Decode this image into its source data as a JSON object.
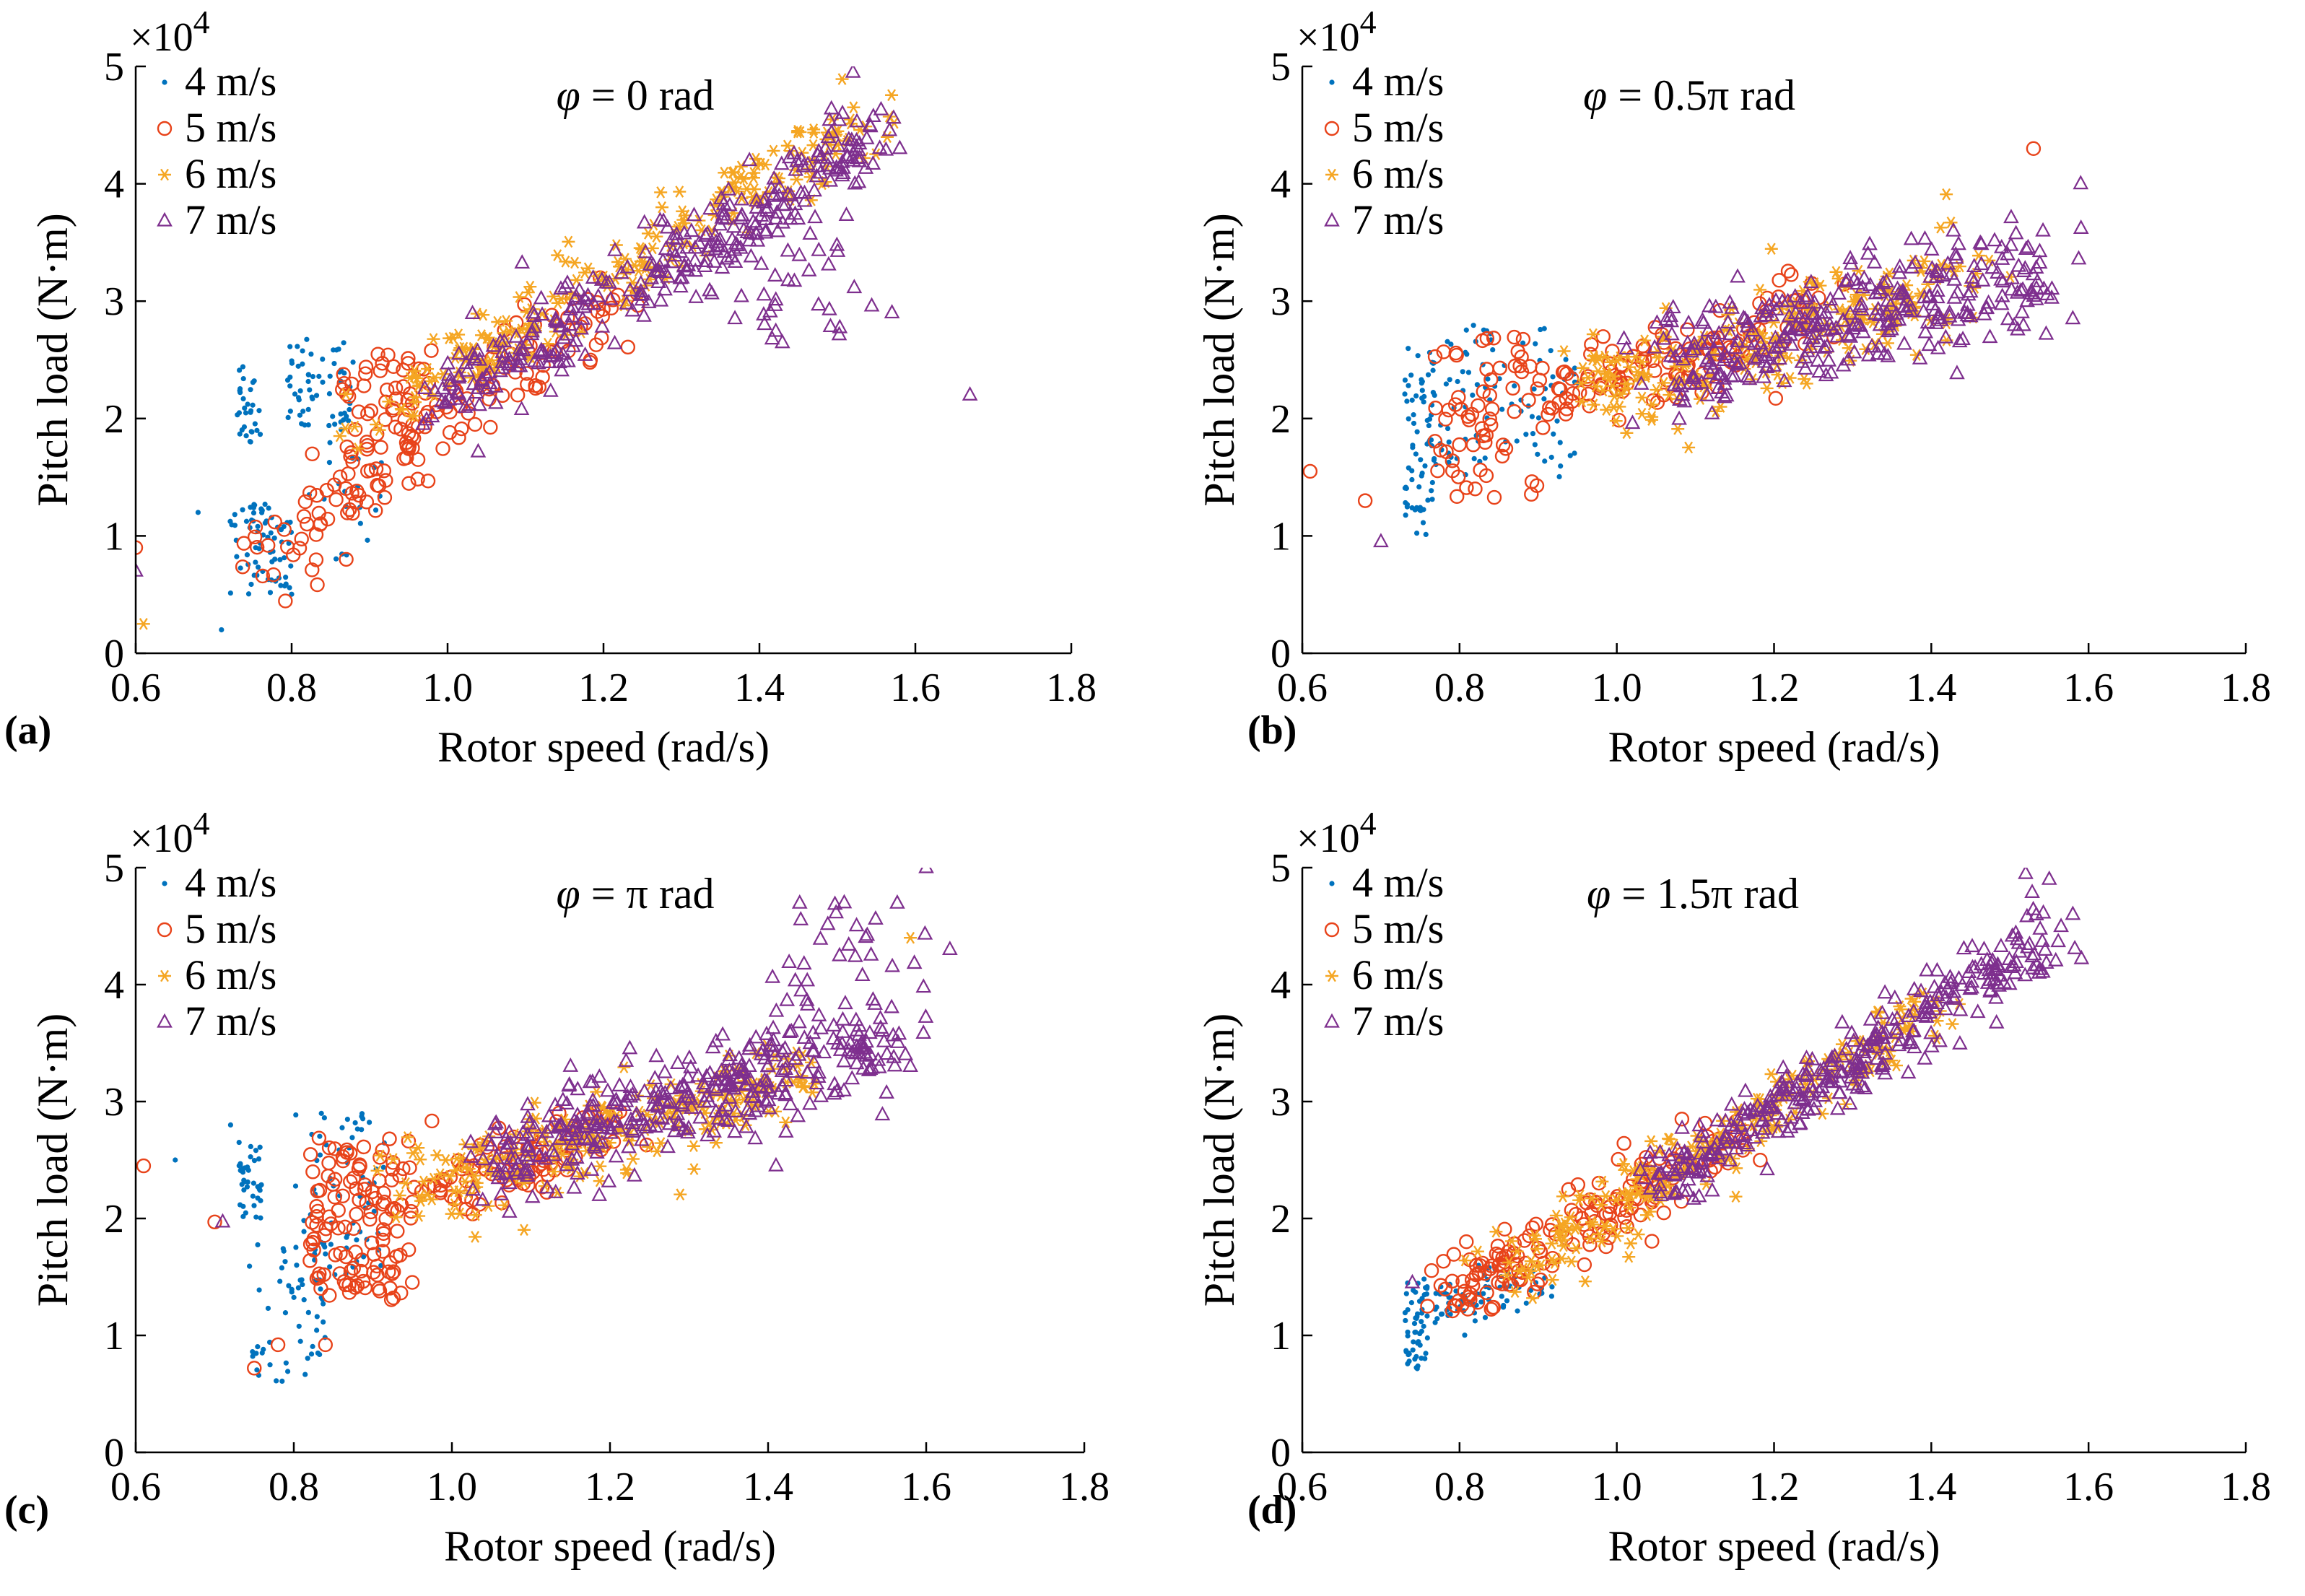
{
  "figure": {
    "colors": {
      "4 m/s": "#0072BD",
      "5 m/s": "#E8431A",
      "6 m/s": "#F5A623",
      "7 m/s": "#7E2F8E"
    }
  },
  "chart_data": [
    {
      "type": "scatter",
      "panel": "(a)",
      "annotation": "φ = 0 rad",
      "xlabel": "Rotor speed (rad/s)",
      "ylabel": "Pitch load (N·m)",
      "y_multiplier": "×10^4",
      "xlim": [
        0.6,
        1.8
      ],
      "ylim": [
        0,
        5
      ],
      "xticks": [
        "0.6",
        "0.8",
        "1.0",
        "1.2",
        "1.4",
        "1.6",
        "1.8"
      ],
      "yticks": [
        "0",
        "1",
        "2",
        "3",
        "4",
        "5"
      ],
      "legend": [
        "4 m/s",
        "5 m/s",
        "6 m/s",
        "7 m/s"
      ],
      "legend_position": "top-left",
      "series": [
        {
          "name": "4 m/s",
          "marker": "dot",
          "clusters": [
            {
              "x0": 0.72,
              "x1": 0.8,
              "y0": 0.5,
              "y1": 1.3,
              "n": 70
            },
            {
              "x0": 0.73,
              "x1": 0.76,
              "y0": 1.8,
              "y1": 2.5,
              "n": 30
            },
            {
              "x0": 0.78,
              "x1": 0.88,
              "y0": 1.9,
              "y1": 2.7,
              "n": 60
            },
            {
              "x0": 0.82,
              "x1": 0.92,
              "y0": 0.8,
              "y1": 1.8,
              "n": 20
            }
          ],
          "points": [
            [
              0.68,
              1.2
            ],
            [
              0.71,
              0.2
            ]
          ]
        },
        {
          "name": "5 m/s",
          "marker": "circle",
          "clusters": [
            {
              "line": [
                0.75,
                0.8,
                1.2,
                2.95
              ],
              "spread_x": 0.06,
              "spread_y": 0.25,
              "n": 150
            },
            {
              "x0": 0.86,
              "x1": 0.98,
              "y0": 1.9,
              "y1": 2.6,
              "n": 40
            }
          ],
          "points": [
            [
              0.6,
              0.9
            ],
            [
              0.87,
              0.8
            ]
          ]
        },
        {
          "name": "6 m/s",
          "marker": "asterisk",
          "clusters": [
            {
              "line": [
                0.88,
                1.9,
                1.55,
                4.6
              ],
              "spread_x": 0.05,
              "spread_y": 0.25,
              "n": 240
            }
          ],
          "points": [
            [
              0.61,
              0.25
            ]
          ]
        },
        {
          "name": "7 m/s",
          "marker": "triangle",
          "clusters": [
            {
              "line": [
                1.0,
                2.2,
                1.56,
                4.4
              ],
              "spread_x": 0.05,
              "spread_y": 0.28,
              "n": 330
            },
            {
              "x0": 1.35,
              "x1": 1.55,
              "y0": 2.6,
              "y1": 3.5,
              "n": 30
            }
          ],
          "points": [
            [
              1.67,
              2.2
            ],
            [
              0.6,
              0.7
            ],
            [
              1.52,
              4.95
            ],
            [
              1.58,
              4.3
            ],
            [
              1.57,
              2.9
            ]
          ]
        }
      ]
    },
    {
      "type": "scatter",
      "panel": "(b)",
      "annotation": "φ = 0.5π rad",
      "xlabel": "Rotor speed (rad/s)",
      "ylabel": "Pitch load (N·m)",
      "y_multiplier": "×10^4",
      "xlim": [
        0.6,
        1.8
      ],
      "ylim": [
        0,
        5
      ],
      "xticks": [
        "0.6",
        "0.8",
        "1.0",
        "1.2",
        "1.4",
        "1.6",
        "1.8"
      ],
      "yticks": [
        "0",
        "1",
        "2",
        "3",
        "4",
        "5"
      ],
      "legend": [
        "4 m/s",
        "5 m/s",
        "6 m/s",
        "7 m/s"
      ],
      "legend_position": "top-left",
      "series": [
        {
          "name": "4 m/s",
          "marker": "dot",
          "clusters": [
            {
              "x0": 0.73,
              "x1": 0.77,
              "y0": 1.0,
              "y1": 2.6,
              "n": 70
            },
            {
              "x0": 0.76,
              "x1": 0.95,
              "y0": 1.5,
              "y1": 2.8,
              "n": 90
            }
          ],
          "points": []
        },
        {
          "name": "5 m/s",
          "marker": "circle",
          "clusters": [
            {
              "x0": 0.76,
              "x1": 0.9,
              "y0": 1.3,
              "y1": 2.7,
              "n": 60
            },
            {
              "line": [
                0.9,
                2.1,
                1.25,
                2.9
              ],
              "spread_x": 0.06,
              "spread_y": 0.3,
              "n": 130
            }
          ],
          "points": [
            [
              0.61,
              1.55
            ],
            [
              0.68,
              1.3
            ],
            [
              1.53,
              4.3
            ]
          ]
        },
        {
          "name": "6 m/s",
          "marker": "asterisk",
          "clusters": [
            {
              "line": [
                0.95,
                2.2,
                1.45,
                3.2
              ],
              "spread_x": 0.06,
              "spread_y": 0.35,
              "n": 240
            }
          ],
          "points": []
        },
        {
          "name": "7 m/s",
          "marker": "triangle",
          "clusters": [
            {
              "line": [
                1.05,
                2.4,
                1.55,
                3.3
              ],
              "spread_x": 0.05,
              "spread_y": 0.38,
              "n": 340
            }
          ],
          "points": [
            [
              0.7,
              0.95
            ],
            [
              1.59,
              4.0
            ],
            [
              1.58,
              2.85
            ]
          ]
        }
      ]
    },
    {
      "type": "scatter",
      "panel": "(c)",
      "annotation": "φ = π rad",
      "xlabel": "Rotor speed (rad/s)",
      "ylabel": "Pitch load (N·m)",
      "y_multiplier": "×10^4",
      "xlim": [
        0.6,
        1.8
      ],
      "ylim": [
        0,
        5
      ],
      "xticks": [
        "0.6",
        "0.8",
        "1.0",
        "1.2",
        "1.4",
        "1.6",
        "1.8"
      ],
      "yticks": [
        "0",
        "1",
        "2",
        "3",
        "4",
        "5"
      ],
      "legend": [
        "4 m/s",
        "5 m/s",
        "6 m/s",
        "7 m/s"
      ],
      "legend_position": "top-left",
      "series": [
        {
          "name": "4 m/s",
          "marker": "dot",
          "clusters": [
            {
              "x0": 0.73,
              "x1": 0.76,
              "y0": 2.0,
              "y1": 2.7,
              "n": 40
            },
            {
              "x0": 0.74,
              "x1": 0.84,
              "y0": 0.6,
              "y1": 1.8,
              "n": 60
            },
            {
              "x0": 0.8,
              "x1": 0.92,
              "y0": 1.5,
              "y1": 2.9,
              "n": 60
            }
          ],
          "points": [
            [
              0.65,
              2.5
            ],
            [
              0.72,
              2.8
            ]
          ]
        },
        {
          "name": "5 m/s",
          "marker": "circle",
          "clusters": [
            {
              "x0": 0.82,
              "x1": 0.95,
              "y0": 1.3,
              "y1": 2.7,
              "n": 120
            },
            {
              "line": [
                0.95,
                2.2,
                1.2,
                2.8
              ],
              "spread_x": 0.05,
              "spread_y": 0.25,
              "n": 100
            }
          ],
          "points": [
            [
              0.61,
              2.45
            ],
            [
              0.7,
              1.97
            ],
            [
              0.75,
              0.72
            ],
            [
              0.78,
              0.92
            ],
            [
              0.84,
              0.92
            ]
          ]
        },
        {
          "name": "6 m/s",
          "marker": "asterisk",
          "clusters": [
            {
              "line": [
                0.92,
                2.2,
                1.45,
                3.2
              ],
              "spread_x": 0.06,
              "spread_y": 0.3,
              "n": 240
            }
          ],
          "points": [
            [
              1.58,
              4.4
            ]
          ]
        },
        {
          "name": "7 m/s",
          "marker": "triangle",
          "clusters": [
            {
              "line": [
                1.05,
                2.5,
                1.55,
                3.5
              ],
              "spread_x": 0.05,
              "spread_y": 0.35,
              "n": 360
            },
            {
              "x0": 1.4,
              "x1": 1.6,
              "y0": 3.5,
              "y1": 4.7,
              "n": 40
            }
          ],
          "points": [
            [
              1.6,
              5.0
            ],
            [
              1.63,
              4.3
            ],
            [
              1.58,
              3.3
            ],
            [
              0.71,
              1.97
            ],
            [
              1.41,
              2.45
            ]
          ]
        }
      ]
    },
    {
      "type": "scatter",
      "panel": "(d)",
      "annotation": "φ = 1.5π rad",
      "xlabel": "Rotor speed (rad/s)",
      "ylabel": "Pitch load (N·m)",
      "y_multiplier": "×10^4",
      "xlim": [
        0.6,
        1.8
      ],
      "ylim": [
        0,
        5
      ],
      "xticks": [
        "0.6",
        "0.8",
        "1.0",
        "1.2",
        "1.4",
        "1.6",
        "1.8"
      ],
      "yticks": [
        "0",
        "1",
        "2",
        "3",
        "4",
        "5"
      ],
      "legend": [
        "4 m/s",
        "5 m/s",
        "6 m/s",
        "7 m/s"
      ],
      "legend_position": "top-left",
      "series": [
        {
          "name": "4 m/s",
          "marker": "dot",
          "clusters": [
            {
              "x0": 0.73,
              "x1": 0.76,
              "y0": 0.7,
              "y1": 1.5,
              "n": 50
            },
            {
              "line": [
                0.76,
                1.2,
                0.9,
                1.5
              ],
              "spread_x": 0.04,
              "spread_y": 0.18,
              "n": 80
            }
          ],
          "points": []
        },
        {
          "name": "5 m/s",
          "marker": "circle",
          "clusters": [
            {
              "line": [
                0.78,
                1.3,
                1.15,
                2.7
              ],
              "spread_x": 0.05,
              "spread_y": 0.2,
              "n": 170
            }
          ],
          "points": []
        },
        {
          "name": "6 m/s",
          "marker": "asterisk",
          "clusters": [
            {
              "line": [
                0.85,
                1.5,
                1.4,
                3.8
              ],
              "spread_x": 0.05,
              "spread_y": 0.22,
              "n": 230
            }
          ],
          "points": []
        },
        {
          "name": "7 m/s",
          "marker": "triangle",
          "clusters": [
            {
              "line": [
                1.05,
                2.3,
                1.57,
                4.5
              ],
              "spread_x": 0.04,
              "spread_y": 0.25,
              "n": 330
            }
          ],
          "points": [
            [
              0.74,
              1.45
            ],
            [
              1.52,
              4.95
            ],
            [
              1.55,
              4.9
            ],
            [
              1.58,
              4.6
            ]
          ]
        }
      ]
    }
  ]
}
